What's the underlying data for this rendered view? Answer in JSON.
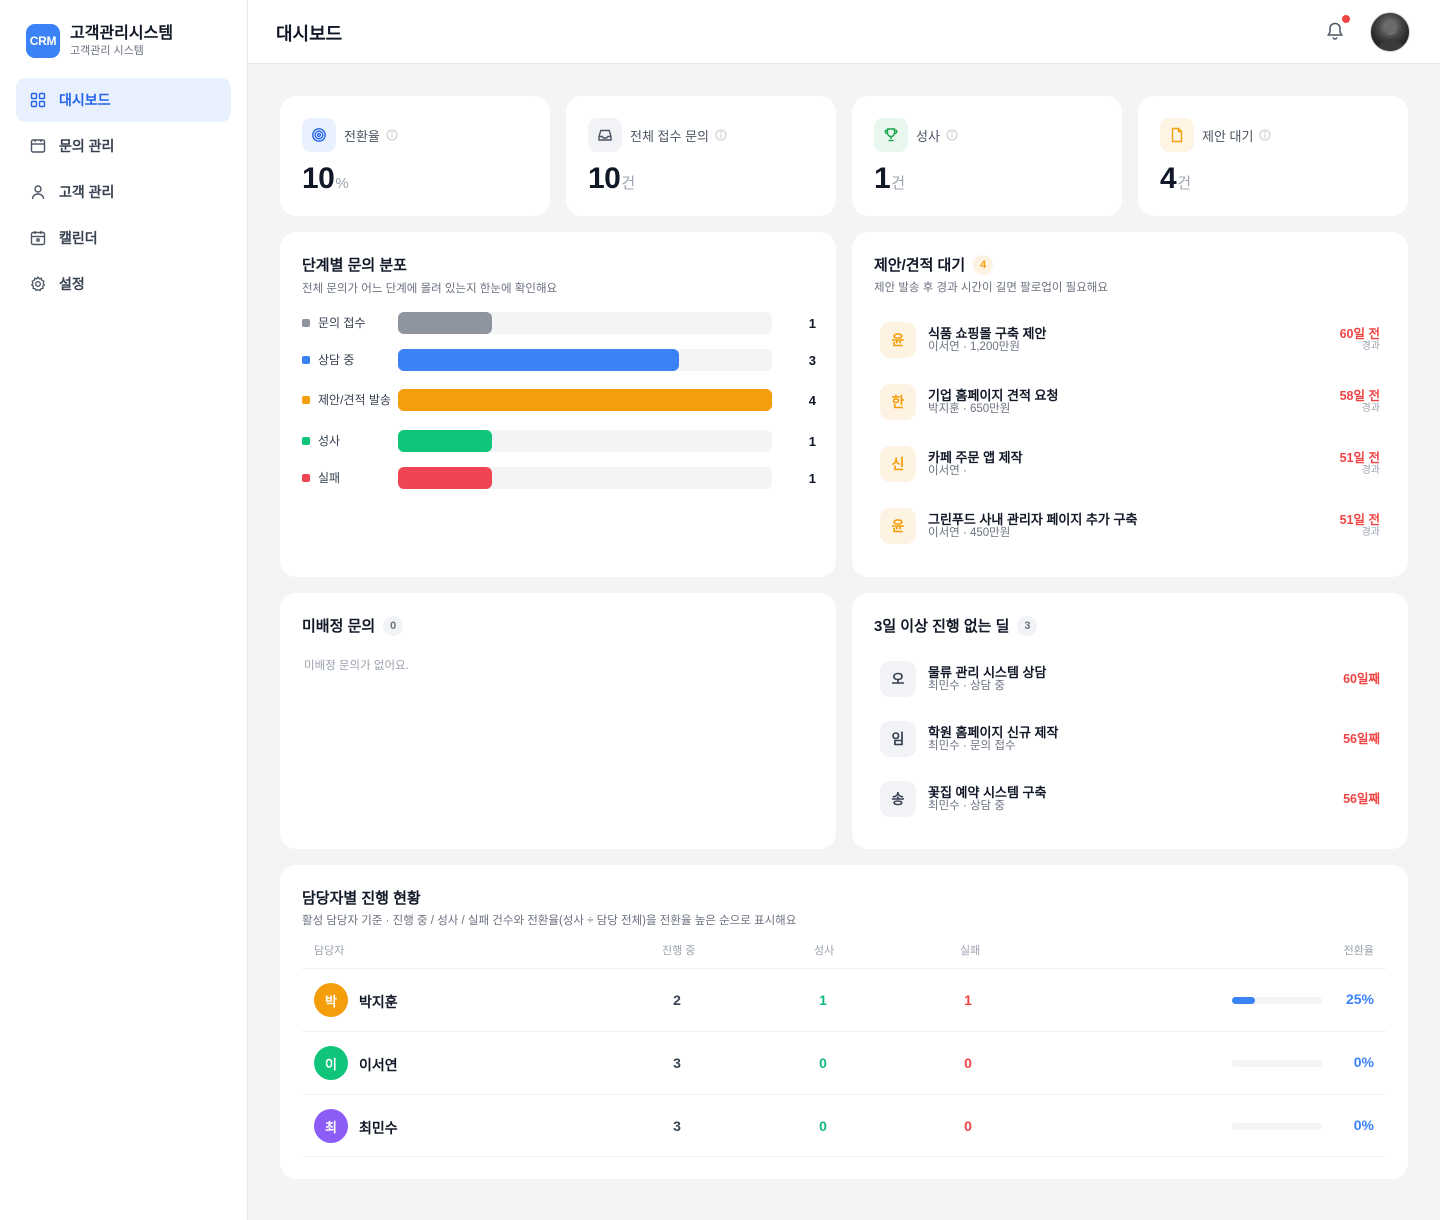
{
  "brand": {
    "logo": "CRM",
    "title": "고객관리시스템",
    "subtitle": "고객관리 시스템"
  },
  "nav": [
    {
      "label": "대시보드",
      "icon": "grid-icon",
      "active": true
    },
    {
      "label": "문의 관리",
      "icon": "inbox-icon",
      "active": false
    },
    {
      "label": "고객 관리",
      "icon": "user-icon",
      "active": false
    },
    {
      "label": "캘린더",
      "icon": "calendar-icon",
      "active": false
    },
    {
      "label": "설정",
      "icon": "gear-icon",
      "active": false
    }
  ],
  "header": {
    "title": "대시보드",
    "has_notification": true
  },
  "stats": [
    {
      "label": "전환율",
      "value": "10",
      "unit": "%",
      "icon": "target-icon",
      "color": "#2563eb",
      "bg": "#eaf1fe"
    },
    {
      "label": "전체 접수 문의",
      "value": "10",
      "unit": "건",
      "icon": "inbox-icon",
      "color": "#4b5563",
      "bg": "#f1f3f6"
    },
    {
      "label": "성사",
      "value": "1",
      "unit": "건",
      "icon": "trophy-icon",
      "color": "#16a34a",
      "bg": "#e8f8ee"
    },
    {
      "label": "제안 대기",
      "value": "4",
      "unit": "건",
      "icon": "file-icon",
      "color": "#f59e0b",
      "bg": "#fef4e4"
    }
  ],
  "distribution": {
    "title": "단계별 문의 분포",
    "subtitle": "전체 문의가 어느 단계에 몰려 있는지 한눈에 확인해요",
    "max": 4,
    "rows": [
      {
        "label": "문의 접수",
        "value": 1,
        "color": "#8f959e"
      },
      {
        "label": "상담 중",
        "value": 3,
        "color": "#3b82f6"
      },
      {
        "label": "제안/견적 발송",
        "value": 4,
        "color": "#f59e0b"
      },
      {
        "label": "성사",
        "value": 1,
        "color": "#10c479"
      },
      {
        "label": "실패",
        "value": 1,
        "color": "#ef4452"
      }
    ]
  },
  "proposals": {
    "title": "제안/견적 대기",
    "count": "4",
    "subtitle": "제안 발송 후 경과 시간이 길면 팔로업이 필요해요",
    "elapsed_label": "경과",
    "items": [
      {
        "initial": "윤",
        "title": "식품 쇼핑몰 구축 제안",
        "meta": "이서연 · 1,200만원",
        "ago": "60일 전"
      },
      {
        "initial": "한",
        "title": "기업 홈페이지 견적 요청",
        "meta": "박지훈 · 650만원",
        "ago": "58일 전"
      },
      {
        "initial": "신",
        "title": "카페 주문 앱 제작",
        "meta": "이서연 ·",
        "ago": "51일 전"
      },
      {
        "initial": "윤",
        "title": "그린푸드 사내 관리자 페이지 추가 구축",
        "meta": "이서연 · 450만원",
        "ago": "51일 전"
      }
    ]
  },
  "unassigned": {
    "title": "미배정 문의",
    "count": "0",
    "empty": "미배정 문의가 없어요."
  },
  "stalled": {
    "title": "3일 이상 진행 없는 딜",
    "count": "3",
    "items": [
      {
        "initial": "오",
        "title": "물류 관리 시스템 상담",
        "meta": "최민수 · 상담 중",
        "days": "60일째"
      },
      {
        "initial": "임",
        "title": "학원 홈페이지 신규 제작",
        "meta": "최민수 · 문의 접수",
        "days": "56일째"
      },
      {
        "initial": "송",
        "title": "꽃집 예약 시스템 구축",
        "meta": "최민수 · 상담 중",
        "days": "56일째"
      }
    ]
  },
  "owners": {
    "title": "담당자별 진행 현황",
    "subtitle": "활성 담당자 기준 · 진행 중 / 성사 / 실패 건수와 전환율(성사 ÷ 담당 전체)을 전환율 높은 순으로 표시해요",
    "columns": {
      "owner": "담당자",
      "in_progress": "진행 중",
      "won": "성사",
      "lost": "실패",
      "rate": "전환율"
    },
    "rows": [
      {
        "initial": "박",
        "name": "박지훈",
        "in_progress": "2",
        "won": "1",
        "lost": "1",
        "rate": 0.25,
        "rate_label": "25%",
        "color": "#f59e0b"
      },
      {
        "initial": "이",
        "name": "이서연",
        "in_progress": "3",
        "won": "0",
        "lost": "0",
        "rate": 0,
        "rate_label": "0%",
        "color": "#10c479"
      },
      {
        "initial": "최",
        "name": "최민수",
        "in_progress": "3",
        "won": "0",
        "lost": "0",
        "rate": 0,
        "rate_label": "0%",
        "color": "#8b5cf6"
      }
    ]
  }
}
